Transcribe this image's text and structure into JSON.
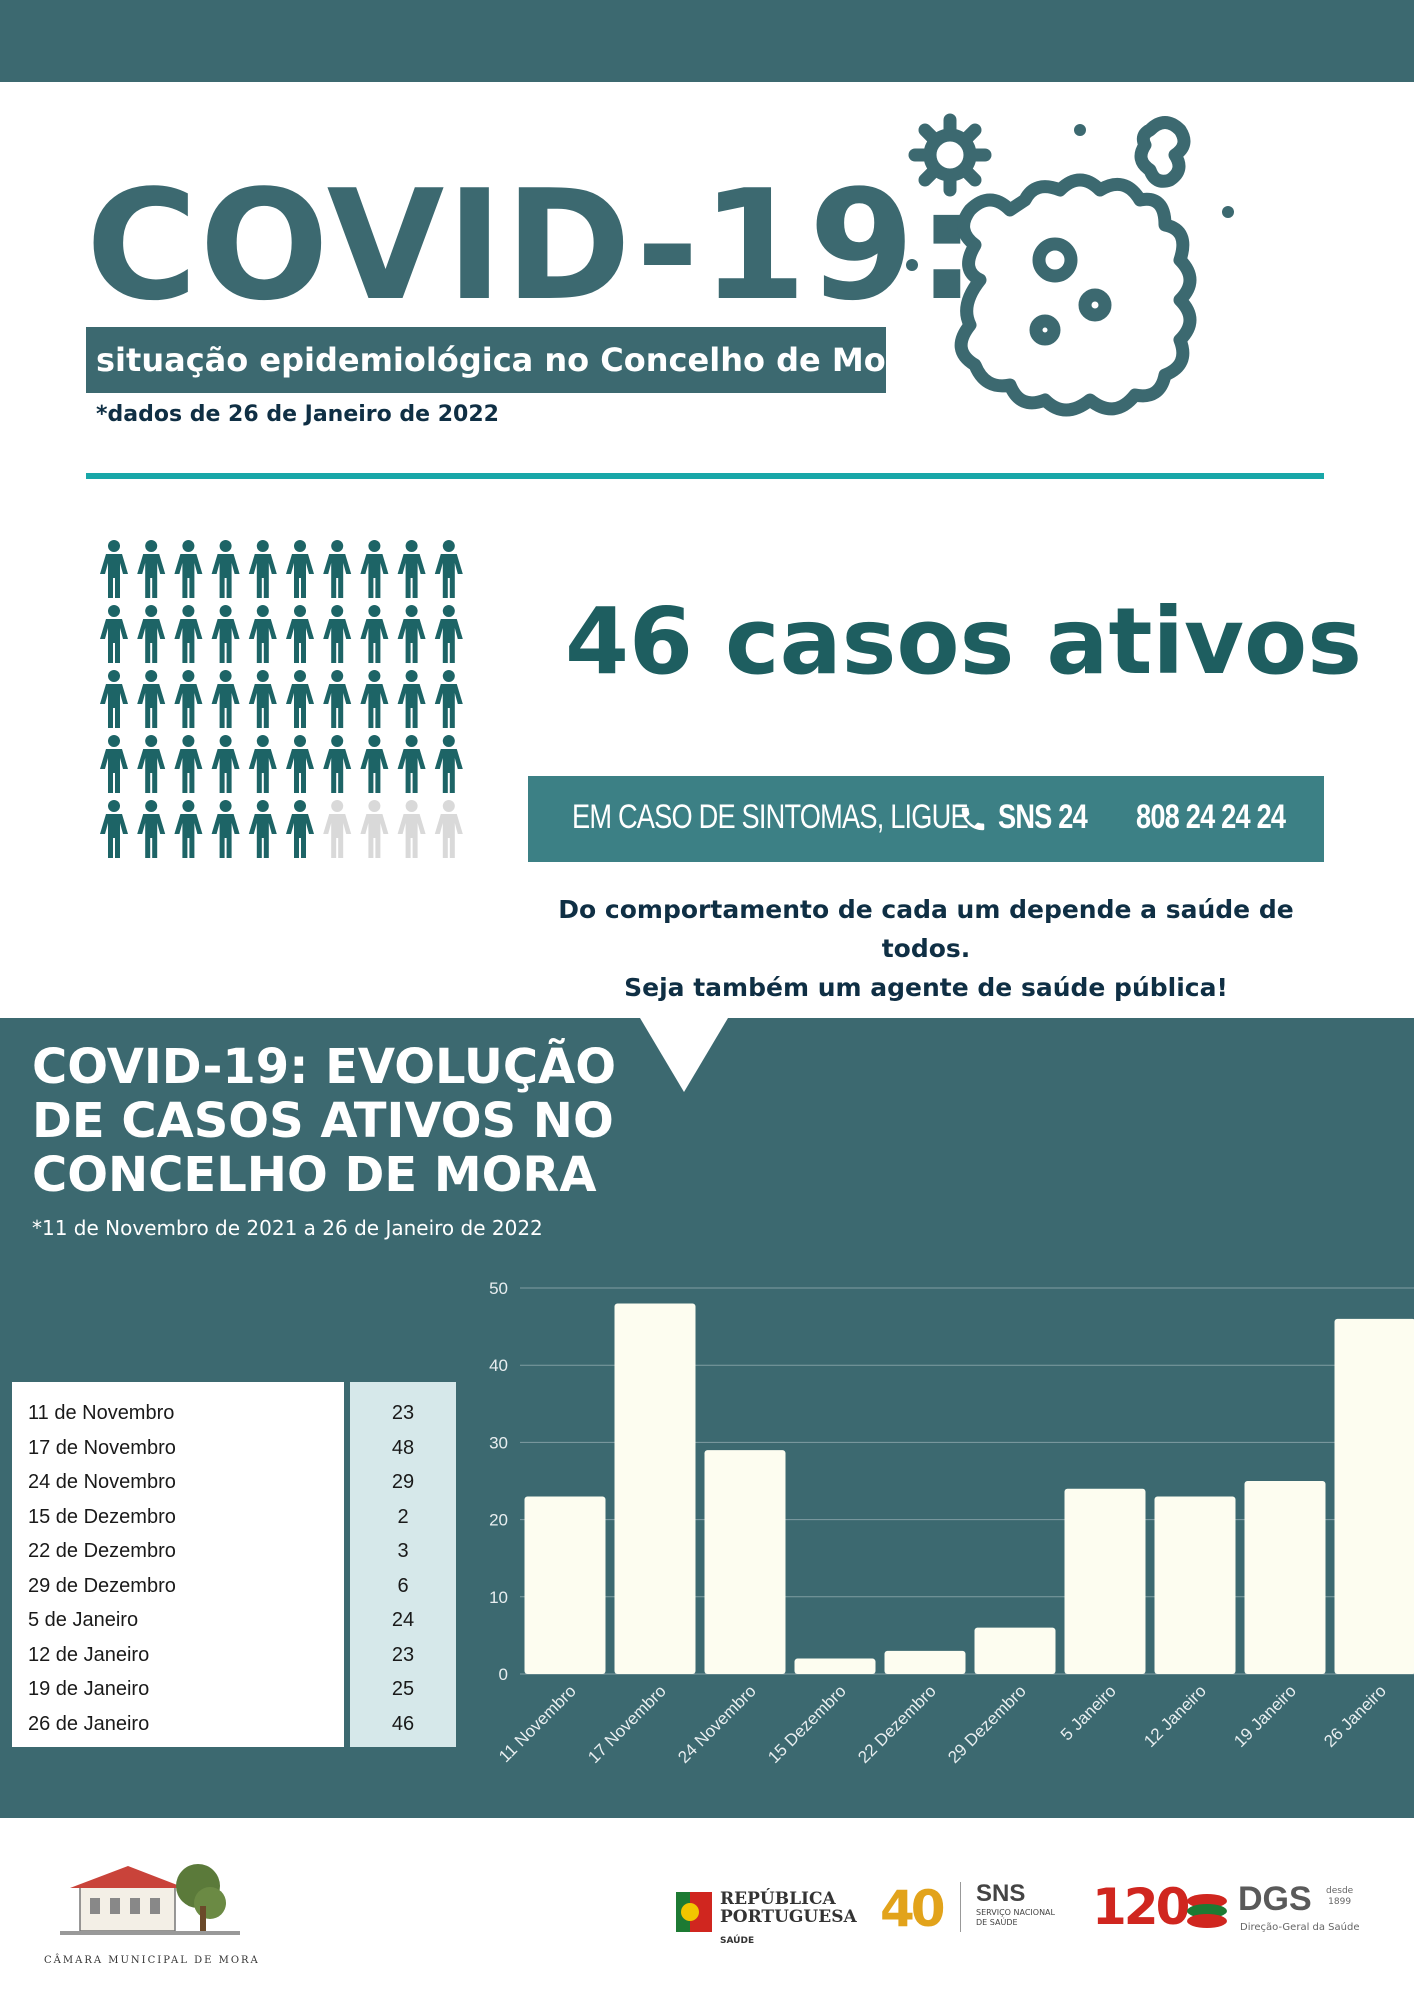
{
  "header": {
    "title": "COVID-19:",
    "subtitle": "situação epidemiológica no Concelho de Mora",
    "data_note": "*dados de 26 de Janeiro de 2022"
  },
  "summary": {
    "active_cases_text": "46 casos ativos",
    "active_cases": 46,
    "icons_total": 50
  },
  "sns": {
    "prompt": "EM CASO DE SINTOMAS, LIGUE",
    "service": "SNS 24",
    "phone": "808 24 24 24"
  },
  "message": {
    "line1": "Do comportamento de cada um depende a saúde de todos.",
    "line2": "Seja também um agente de saúde pública!"
  },
  "section": {
    "title_line1": "COVID-19: EVOLUÇÃO",
    "title_line2": "DE CASOS ATIVOS NO",
    "title_line3": "CONCELHO DE MORA",
    "note": "*11 de Novembro de 2021 a 26 de Janeiro de 2022"
  },
  "table": [
    {
      "label": "11 de Novembro",
      "value": "23"
    },
    {
      "label": "17 de Novembro",
      "value": "48"
    },
    {
      "label": "24 de Novembro",
      "value": "29"
    },
    {
      "label": "15 de Dezembro",
      "value": "2"
    },
    {
      "label": "22 de Dezembro",
      "value": "3"
    },
    {
      "label": "29 de Dezembro",
      "value": "6"
    },
    {
      "label": "5 de Janeiro",
      "value": "24"
    },
    {
      "label": "12 de Janeiro",
      "value": "23"
    },
    {
      "label": "19 de Janeiro",
      "value": "25"
    },
    {
      "label": "26 de Janeiro",
      "value": "46"
    }
  ],
  "chart_data": {
    "type": "bar",
    "categories": [
      "11 Novembro",
      "17 Novembro",
      "24 Novembro",
      "15 Dezembro",
      "22 Dezembro",
      "29 Dezembro",
      "5 Janeiro",
      "12 Janeiro",
      "19 Janeiro",
      "26 Janeiro"
    ],
    "values": [
      23,
      48,
      29,
      2,
      3,
      6,
      24,
      23,
      25,
      46
    ],
    "yticks": [
      "0",
      "10",
      "20",
      "30",
      "40",
      "50"
    ],
    "ylim": [
      0,
      50
    ],
    "grid": true,
    "bar_color": "#fdfdf0",
    "title": "",
    "xlabel": "",
    "ylabel": ""
  },
  "footer": {
    "camara": "CÂMARA MUNICIPAL DE MORA",
    "republica_line1": "REPÚBLICA",
    "republica_line2": "PORTUGUESA",
    "republica_line3": "SAÚDE",
    "sns40": "40",
    "sns_label": "SNS",
    "sns_sub1": "SERVIÇO NACIONAL",
    "sns_sub2": "DE SAÚDE",
    "dgs120": "120",
    "dgs": "DGS",
    "dgs_since1": "desde",
    "dgs_since2": "1899",
    "dgs_sub": "Direção-Geral da Saúde"
  },
  "colors": {
    "primary": "#3c6970",
    "teal_dark": "#1e5e60",
    "accent_rule": "#18a7a8",
    "icon_active": "#1d6466",
    "icon_inactive": "#d9d9d9"
  }
}
